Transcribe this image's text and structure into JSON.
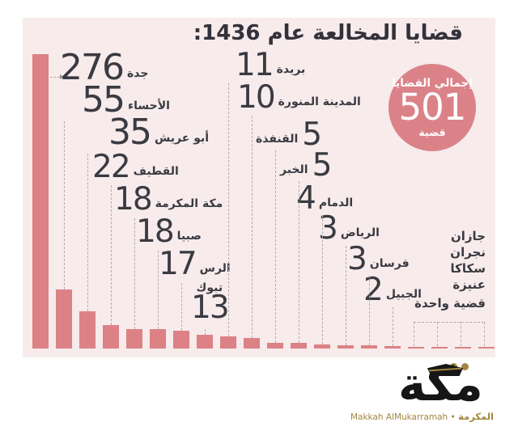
{
  "title": "قضايا المخالعة عام 1436:",
  "badge": {
    "label": "إجمالي القضايا",
    "value": "501",
    "unit": "قضية"
  },
  "ones_label": "قضية واحدة",
  "chart_data": {
    "type": "bar",
    "title": "قضايا المخالعة عام 1436",
    "categories": [
      "جدة",
      "الأحساء",
      "أبو عريش",
      "القطيف",
      "مكة المكرمة",
      "صبيا",
      "الرس",
      "تبوك",
      "بريدة",
      "المدينة المنورة",
      "القنفذة",
      "الخبر",
      "الدمام",
      "الرياض",
      "فرسان",
      "الجبيل",
      "جازان",
      "نجران",
      "سكاكا",
      "عنيزة"
    ],
    "values": [
      276,
      55,
      35,
      22,
      18,
      18,
      17,
      13,
      11,
      10,
      5,
      5,
      4,
      3,
      3,
      2,
      1,
      1,
      1,
      1
    ],
    "total": 501,
    "ylim": [
      0,
      280
    ],
    "xlabel": "",
    "ylabel": "",
    "legend": "none",
    "grid": false,
    "bar_color": "#dc8186",
    "annotation_one_case": "قضية واحدة"
  },
  "logo": {
    "wordmark": "مكة",
    "subtitle_en": "Makkah AlMukarramah",
    "separator": "•",
    "subtitle_ar": "المكرمة"
  },
  "colors": {
    "panel_bg": "#f7ebeb",
    "bar": "#dc8186",
    "badge": "#db8289",
    "text": "#3a3a42",
    "gold": "#a3863f",
    "leader": "#b5abab"
  }
}
